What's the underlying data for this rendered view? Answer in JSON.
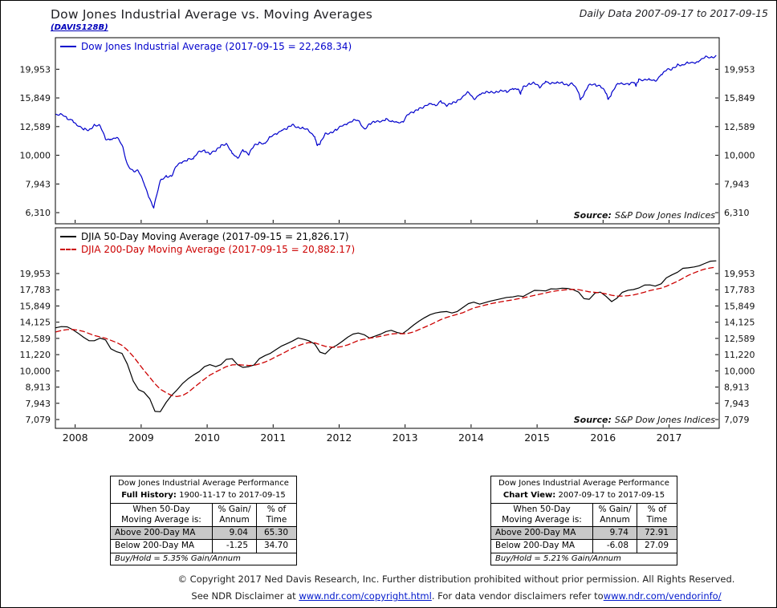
{
  "header": {
    "title": "Dow Jones Industrial Average vs. Moving Averages",
    "chart_id": "(DAVIS128B)",
    "period": "Daily Data 2007-09-17 to 2017-09-15"
  },
  "chart_data": [
    {
      "type": "line",
      "title": "Dow Jones Industrial Average",
      "y_scale": "log",
      "grid": false,
      "legend_position": "top-left",
      "x_range": [
        2007.7,
        2017.76
      ],
      "ylim": [
        5770,
        25700
      ],
      "y_ticks": [
        "6,310",
        "7,943",
        "10,000",
        "12,589",
        "15,849",
        "19,953"
      ],
      "y_tick_values": [
        6310,
        7943,
        10000,
        12589,
        15849,
        19953
      ],
      "x_ticks": [
        2008,
        2009,
        2010,
        2011,
        2012,
        2013,
        2014,
        2015,
        2016,
        2017
      ],
      "x_tick_labels": false,
      "source_label": "Source:",
      "source": "S&P Dow Jones Indices",
      "series": [
        {
          "name": "Dow Jones Industrial Average",
          "label": "Dow Jones Industrial Average (2017-09-15 = 22,268.34)",
          "color": "#0000cc",
          "dash": null,
          "noise": 1,
          "x": [
            2007.71,
            2007.79,
            2007.88,
            2007.96,
            2008.04,
            2008.13,
            2008.21,
            2008.29,
            2008.38,
            2008.46,
            2008.54,
            2008.63,
            2008.71,
            2008.79,
            2008.88,
            2008.96,
            2009.04,
            2009.13,
            2009.19,
            2009.29,
            2009.38,
            2009.46,
            2009.54,
            2009.63,
            2009.71,
            2009.79,
            2009.88,
            2009.96,
            2010.04,
            2010.13,
            2010.21,
            2010.29,
            2010.38,
            2010.46,
            2010.54,
            2010.63,
            2010.71,
            2010.79,
            2010.88,
            2010.96,
            2011.04,
            2011.13,
            2011.21,
            2011.29,
            2011.38,
            2011.46,
            2011.54,
            2011.63,
            2011.67,
            2011.71,
            2011.79,
            2011.88,
            2011.96,
            2012.04,
            2012.13,
            2012.21,
            2012.29,
            2012.38,
            2012.46,
            2012.54,
            2012.63,
            2012.71,
            2012.79,
            2012.88,
            2012.96,
            2013.04,
            2013.13,
            2013.21,
            2013.29,
            2013.38,
            2013.46,
            2013.54,
            2013.63,
            2013.71,
            2013.79,
            2013.88,
            2013.96,
            2014.04,
            2014.13,
            2014.21,
            2014.29,
            2014.38,
            2014.46,
            2014.54,
            2014.63,
            2014.71,
            2014.75,
            2014.79,
            2014.88,
            2014.96,
            2015.04,
            2015.13,
            2015.21,
            2015.29,
            2015.38,
            2015.46,
            2015.54,
            2015.63,
            2015.66,
            2015.71,
            2015.79,
            2015.88,
            2015.96,
            2016.04,
            2016.08,
            2016.13,
            2016.21,
            2016.29,
            2016.38,
            2016.46,
            2016.5,
            2016.54,
            2016.63,
            2016.71,
            2016.79,
            2016.88,
            2016.96,
            2017.04,
            2017.13,
            2017.21,
            2017.29,
            2017.38,
            2017.46,
            2017.54,
            2017.63,
            2017.71
          ],
          "y": [
            13895,
            13930,
            13372,
            13265,
            12650,
            12266,
            12263,
            12820,
            12638,
            11350,
            11378,
            11544,
            10851,
            9325,
            8829,
            8776,
            8001,
            7063,
            6547,
            8168,
            8500,
            8447,
            9172,
            9496,
            9712,
            9713,
            10345,
            10428,
            10067,
            10325,
            10857,
            11009,
            10137,
            9774,
            10466,
            10015,
            10788,
            11118,
            11006,
            11578,
            11892,
            12226,
            12320,
            12811,
            12570,
            12414,
            12143,
            11614,
            10810,
            10913,
            11955,
            12046,
            12218,
            12633,
            12952,
            13212,
            13214,
            12393,
            12880,
            13009,
            13091,
            13437,
            13096,
            13026,
            13104,
            13861,
            14054,
            14579,
            14840,
            15116,
            14910,
            15500,
            14810,
            15130,
            15546,
            16086,
            16577,
            15699,
            16322,
            16458,
            16581,
            16717,
            16827,
            16563,
            17098,
            17043,
            16321,
            17391,
            17828,
            17823,
            17165,
            18133,
            17776,
            17841,
            18011,
            17620,
            17690,
            16528,
            15666,
            16285,
            17664,
            17720,
            17425,
            16466,
            15660,
            16517,
            17685,
            17774,
            17787,
            17930,
            17400,
            18432,
            18401,
            18308,
            18142,
            19124,
            19763,
            19864,
            20812,
            20663,
            20941,
            21009,
            21350,
            21891,
            21948,
            22268
          ]
        }
      ]
    },
    {
      "type": "line",
      "title": "DJIA Moving Averages",
      "y_scale": "log",
      "grid": false,
      "legend_position": "top-left",
      "x_range": [
        2007.7,
        2017.76
      ],
      "ylim": [
        6650,
        27600
      ],
      "y_ticks": [
        "7,079",
        "7,943",
        "8,913",
        "10,000",
        "11,220",
        "12,589",
        "14,125",
        "15,849",
        "17,783",
        "19,953"
      ],
      "y_tick_values": [
        7079,
        7943,
        8913,
        10000,
        11220,
        12589,
        14125,
        15849,
        17783,
        19953
      ],
      "x_ticks": [
        2008,
        2009,
        2010,
        2011,
        2012,
        2013,
        2014,
        2015,
        2016,
        2017
      ],
      "x_tick_labels": true,
      "source_label": "Source:",
      "source": "S&P Dow Jones Indices",
      "series": [
        {
          "name": "DJIA 50-Day Moving Average",
          "label": "DJIA 50-Day Moving Average (2017-09-15 = 21,826.17)",
          "color": "#000000",
          "dash": null,
          "noise": 0,
          "x": [
            2007.71,
            2007.79,
            2007.88,
            2007.96,
            2008.04,
            2008.13,
            2008.21,
            2008.29,
            2008.38,
            2008.46,
            2008.54,
            2008.63,
            2008.71,
            2008.79,
            2008.88,
            2008.96,
            2009.04,
            2009.13,
            2009.21,
            2009.29,
            2009.38,
            2009.46,
            2009.54,
            2009.63,
            2009.71,
            2009.79,
            2009.88,
            2009.96,
            2010.04,
            2010.13,
            2010.21,
            2010.29,
            2010.38,
            2010.46,
            2010.54,
            2010.63,
            2010.71,
            2010.79,
            2010.88,
            2010.96,
            2011.04,
            2011.13,
            2011.21,
            2011.29,
            2011.38,
            2011.46,
            2011.54,
            2011.63,
            2011.71,
            2011.79,
            2011.88,
            2011.96,
            2012.04,
            2012.13,
            2012.21,
            2012.29,
            2012.38,
            2012.46,
            2012.54,
            2012.63,
            2012.71,
            2012.79,
            2012.88,
            2012.96,
            2013.04,
            2013.13,
            2013.21,
            2013.29,
            2013.38,
            2013.46,
            2013.54,
            2013.63,
            2013.71,
            2013.79,
            2013.88,
            2013.96,
            2014.04,
            2014.13,
            2014.21,
            2014.29,
            2014.38,
            2014.46,
            2014.54,
            2014.63,
            2014.71,
            2014.79,
            2014.88,
            2014.96,
            2015.04,
            2015.13,
            2015.21,
            2015.29,
            2015.38,
            2015.46,
            2015.54,
            2015.63,
            2015.71,
            2015.79,
            2015.88,
            2015.96,
            2016.04,
            2016.13,
            2016.21,
            2016.29,
            2016.38,
            2016.46,
            2016.54,
            2016.63,
            2016.71,
            2016.79,
            2016.88,
            2016.96,
            2017.04,
            2017.13,
            2017.21,
            2017.29,
            2017.38,
            2017.46,
            2017.54,
            2017.63,
            2017.71
          ],
          "y": [
            13580,
            13690,
            13660,
            13400,
            13080,
            12680,
            12380,
            12380,
            12620,
            12450,
            11700,
            11450,
            11320,
            10500,
            9300,
            8750,
            8600,
            8200,
            7500,
            7480,
            8000,
            8400,
            8720,
            9150,
            9450,
            9700,
            9950,
            10300,
            10450,
            10300,
            10450,
            10850,
            10900,
            10450,
            10250,
            10300,
            10420,
            10900,
            11150,
            11330,
            11620,
            11930,
            12130,
            12350,
            12630,
            12520,
            12380,
            12100,
            11420,
            11280,
            11750,
            11980,
            12300,
            12700,
            12980,
            13080,
            12920,
            12620,
            12780,
            12980,
            13220,
            13330,
            13120,
            13020,
            13380,
            13850,
            14230,
            14560,
            14900,
            15080,
            15180,
            15230,
            15080,
            15230,
            15700,
            16120,
            16280,
            16050,
            16230,
            16400,
            16550,
            16700,
            16840,
            16900,
            17030,
            16950,
            17350,
            17700,
            17680,
            17630,
            17900,
            17880,
            17980,
            17950,
            17800,
            17480,
            16700,
            16620,
            17380,
            17480,
            17000,
            16350,
            16750,
            17450,
            17720,
            17800,
            18000,
            18380,
            18400,
            18250,
            18550,
            19350,
            19750,
            20150,
            20700,
            20780,
            20900,
            21080,
            21420,
            21780,
            21826
          ]
        },
        {
          "name": "DJIA 200-Day Moving Average",
          "label": "DJIA 200-Day Moving Average (2017-09-15 = 20,882.17)",
          "color": "#cc0000",
          "dash": "6,4",
          "noise": 0,
          "x": [
            2007.71,
            2007.79,
            2007.88,
            2007.96,
            2008.04,
            2008.13,
            2008.21,
            2008.29,
            2008.38,
            2008.46,
            2008.54,
            2008.63,
            2008.71,
            2008.79,
            2008.88,
            2008.96,
            2009.04,
            2009.13,
            2009.21,
            2009.29,
            2009.38,
            2009.46,
            2009.54,
            2009.63,
            2009.71,
            2009.79,
            2009.88,
            2009.96,
            2010.04,
            2010.13,
            2010.21,
            2010.29,
            2010.38,
            2010.46,
            2010.54,
            2010.63,
            2010.71,
            2010.79,
            2010.88,
            2010.96,
            2011.04,
            2011.13,
            2011.21,
            2011.29,
            2011.38,
            2011.46,
            2011.54,
            2011.63,
            2011.71,
            2011.79,
            2011.88,
            2011.96,
            2012.04,
            2012.13,
            2012.21,
            2012.29,
            2012.38,
            2012.46,
            2012.54,
            2012.63,
            2012.71,
            2012.79,
            2012.88,
            2012.96,
            2013.04,
            2013.13,
            2013.21,
            2013.29,
            2013.38,
            2013.46,
            2013.54,
            2013.63,
            2013.71,
            2013.79,
            2013.88,
            2013.96,
            2014.04,
            2014.13,
            2014.21,
            2014.29,
            2014.38,
            2014.46,
            2014.54,
            2014.63,
            2014.71,
            2014.79,
            2014.88,
            2014.96,
            2015.04,
            2015.13,
            2015.21,
            2015.29,
            2015.38,
            2015.46,
            2015.54,
            2015.63,
            2015.71,
            2015.79,
            2015.88,
            2015.96,
            2016.04,
            2016.13,
            2016.21,
            2016.29,
            2016.38,
            2016.46,
            2016.54,
            2016.63,
            2016.71,
            2016.79,
            2016.88,
            2016.96,
            2017.04,
            2017.13,
            2017.21,
            2017.29,
            2017.38,
            2017.46,
            2017.54,
            2017.63,
            2017.71
          ],
          "y": [
            13190,
            13320,
            13400,
            13410,
            13350,
            13220,
            13030,
            12850,
            12720,
            12600,
            12420,
            12220,
            11980,
            11600,
            11080,
            10550,
            10050,
            9550,
            9120,
            8780,
            8560,
            8400,
            8330,
            8400,
            8580,
            8850,
            9150,
            9430,
            9700,
            9920,
            10110,
            10300,
            10430,
            10450,
            10420,
            10390,
            10400,
            10500,
            10650,
            10830,
            11050,
            11270,
            11500,
            11730,
            11950,
            12110,
            12220,
            12200,
            12050,
            11900,
            11830,
            11820,
            11880,
            12020,
            12210,
            12400,
            12520,
            12610,
            12680,
            12780,
            12890,
            12990,
            13030,
            13010,
            13040,
            13180,
            13400,
            13620,
            13870,
            14120,
            14380,
            14610,
            14780,
            14930,
            15120,
            15380,
            15620,
            15790,
            15940,
            16090,
            16230,
            16340,
            16440,
            16540,
            16680,
            16790,
            16940,
            17090,
            17230,
            17380,
            17530,
            17640,
            17730,
            17790,
            17830,
            17790,
            17650,
            17520,
            17450,
            17390,
            17280,
            17100,
            17000,
            17000,
            17050,
            17140,
            17290,
            17480,
            17680,
            17830,
            17990,
            18230,
            18540,
            18890,
            19290,
            19690,
            20040,
            20340,
            20590,
            20760,
            20882
          ]
        }
      ]
    }
  ],
  "tables": [
    {
      "title": "Dow Jones Industrial Average Performance",
      "period_label": "Full History:",
      "period_value": "1900-11-17 to 2017-09-15",
      "col1_header": "When 50-Day\nMoving Average is:",
      "col2_header": "% Gain/\nAnnum",
      "col3_header": "% of\nTime",
      "rows": [
        {
          "label": "Above 200-Day MA",
          "gain": "9.04",
          "time": "65.30",
          "shaded": true
        },
        {
          "label": "Below 200-Day MA",
          "gain": "-1.25",
          "time": "34.70",
          "shaded": false
        }
      ],
      "footer": "Buy/Hold = 5.35% Gain/Annum"
    },
    {
      "title": "Dow Jones Industrial Average Performance",
      "period_label": "Chart View:",
      "period_value": "2007-09-17 to 2017-09-15",
      "col1_header": "When 50-Day\nMoving Average is:",
      "col2_header": "% Gain/\nAnnum",
      "col3_header": "% of\nTime",
      "rows": [
        {
          "label": "Above 200-Day MA",
          "gain": "9.74",
          "time": "72.91",
          "shaded": true
        },
        {
          "label": "Below 200-Day MA",
          "gain": "-6.08",
          "time": "27.09",
          "shaded": false
        }
      ],
      "footer": "Buy/Hold = 5.21% Gain/Annum"
    }
  ],
  "footer": {
    "line1": "© Copyright 2017 Ned Davis Research, Inc. Further distribution prohibited without prior permission. All Rights Reserved.",
    "line2_prefix": "See NDR Disclaimer at ",
    "link1": "www.ndr.com/copyright.html",
    "line2_middle": ". For data vendor disclaimers refer to",
    "link2": "www.ndr.com/vendorinfo/"
  },
  "colors": {
    "djia_line": "#0000cc",
    "ma50_line": "#000000",
    "ma200_line": "#cc0000",
    "shaded_row": "#c8c8c8",
    "link": "#0018cc"
  }
}
